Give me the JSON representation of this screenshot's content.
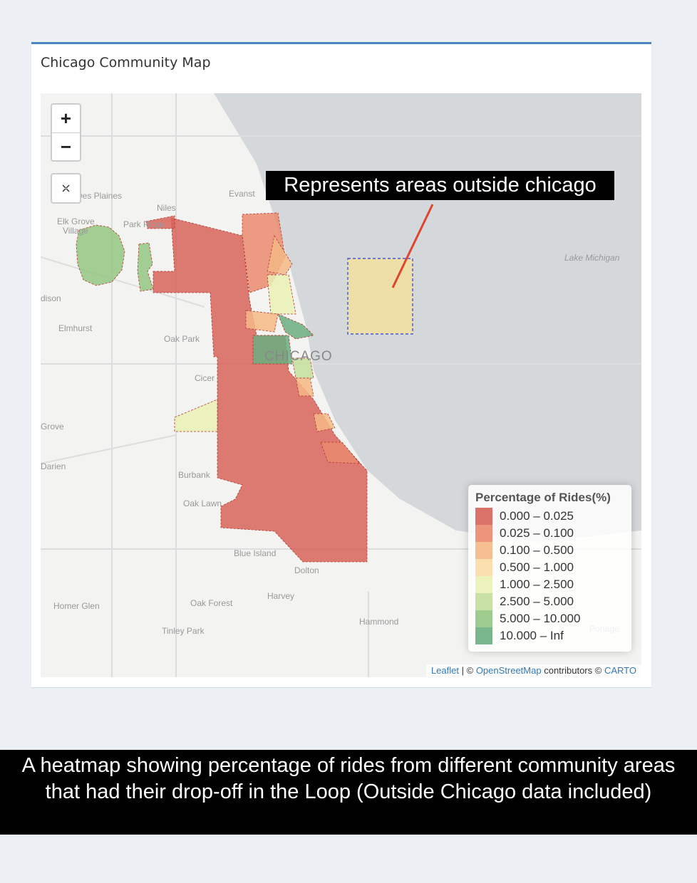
{
  "panel": {
    "title": "Chicago Community Map"
  },
  "controls": {
    "zoom_in": "+",
    "zoom_out": "−"
  },
  "annotation": "Represents areas outside chicago",
  "place_labels": [
    "Des Plaines",
    "Niles",
    "Evanst",
    "Elk Grove",
    "Village",
    "Park Ridge",
    "Lake Michigan",
    "dison",
    "Elmhurst",
    "Oak Park",
    "CHICAGO",
    "Cicer",
    "Grove",
    "Darien",
    "Burbank",
    "Oak Lawn",
    "Blue Island",
    "Dolton",
    "Harvey",
    "Homer Glen",
    "Oak Forest",
    "Tinley Park",
    "Hammond",
    "Portage"
  ],
  "legend": {
    "title": "Percentage of Rides(%)",
    "items": [
      {
        "label": "0.000 – 0.025",
        "color": "#d7635a"
      },
      {
        "label": "0.025 – 0.100",
        "color": "#ea8a6e"
      },
      {
        "label": "0.100 – 0.500",
        "color": "#f4b886"
      },
      {
        "label": "0.500 – 1.000",
        "color": "#fbdca5"
      },
      {
        "label": "1.000 – 2.500",
        "color": "#e9f1b5"
      },
      {
        "label": "2.500 – 5.000",
        "color": "#c3de9b"
      },
      {
        "label": "5.000 – 10.000",
        "color": "#93c682"
      },
      {
        "label": "10.000 – Inf",
        "color": "#6aae80"
      }
    ]
  },
  "attribution": [
    "Leaflet",
    "| ©",
    "OpenStreetMap",
    "contributors ©",
    "CARTO"
  ],
  "caption": "A heatmap showing percentage of rides from different community areas that had their drop-off in the Loop (Outside Chicago data included)"
}
